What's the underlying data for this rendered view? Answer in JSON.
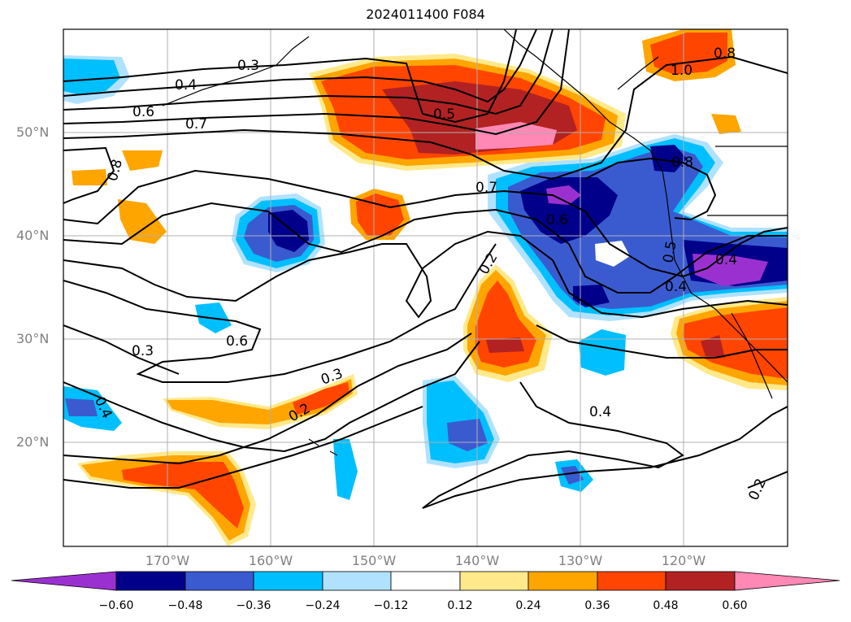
{
  "title": "2024011400 F084",
  "map": {
    "projection": "lat-lon",
    "lat_range": [
      10,
      60
    ],
    "lon_range": [
      -180,
      -110
    ],
    "gridlines": true,
    "coastlines": true
  },
  "lat_labels": [
    "50°N",
    "40°N",
    "30°N",
    "20°N"
  ],
  "lon_labels": [
    "170°W",
    "160°W",
    "150°W",
    "140°W",
    "130°W",
    "120°W"
  ],
  "contour_labels": [
    "0.3",
    "0.4",
    "0.6",
    "0.7",
    "0.8",
    "0.5",
    "1.0",
    "0.8",
    "0.8",
    "0.7",
    "0.6",
    "0.5",
    "0.4",
    "0.4",
    "0.2",
    "0.3",
    "0.6",
    "0.3",
    "0.2",
    "0.4",
    "0.4",
    "0.2"
  ],
  "colorbar": {
    "ticks": [
      "−0.60",
      "−0.48",
      "−0.36",
      "−0.24",
      "−0.12",
      "0.12",
      "0.24",
      "0.36",
      "0.48",
      "0.60"
    ],
    "colors": [
      "#9b30d0",
      "#00008b",
      "#3a5bd0",
      "#00bfff",
      "#b0e2ff",
      "#ffffff",
      "#ffe98a",
      "#ffa500",
      "#ff4500",
      "#b22222",
      "#ff88b4"
    ],
    "extend": "both"
  }
}
